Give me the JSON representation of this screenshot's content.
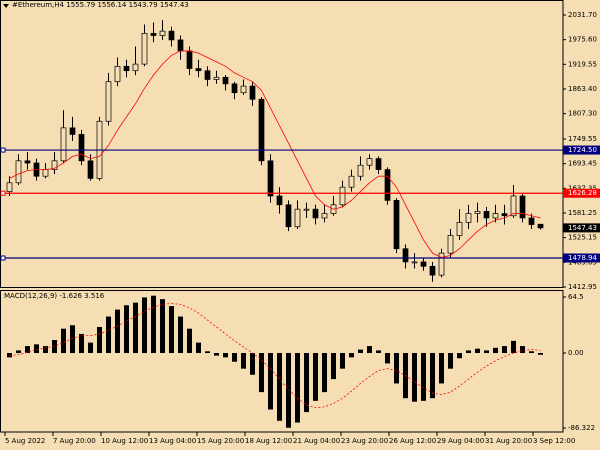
{
  "chart_data": {
    "type": "candlestick",
    "symbol": "#Ethereum,H4",
    "header_ohlc": [
      1555.79,
      1556.14,
      1543.79,
      1547.43
    ],
    "up_color": "#f5deb3",
    "down_color": "#000000",
    "ylim": [
      1412.95,
      2061.3
    ],
    "yticks": [
      {
        "value": 2031.7,
        "label": "2031.70"
      },
      {
        "value": 1975.6,
        "label": "1975.60"
      },
      1919.55,
      {
        "value": 1863.4,
        "label": "1863.40"
      },
      {
        "value": 1807.3,
        "label": "1807.30"
      },
      1749.55,
      1693.45,
      1637.35,
      1581.25,
      1525.15,
      1469.05,
      1412.95
    ],
    "xticks": [
      {
        "value": 0,
        "label": "5 Aug 2022"
      },
      {
        "value": 5.333,
        "label": "7 Aug 20:00"
      },
      {
        "value": 10.667,
        "label": "10 Aug 12:00"
      },
      {
        "value": 16,
        "label": "13 Aug 04:00"
      },
      {
        "value": 21.333,
        "label": "15 Aug 20:00"
      },
      {
        "value": 26.667,
        "label": "18 Aug 12:00"
      },
      {
        "value": 32,
        "label": "21 Aug 04:00"
      },
      {
        "value": 37.333,
        "label": "23 Aug 20:00"
      },
      {
        "value": 42.667,
        "label": "26 Aug 12:00"
      },
      {
        "value": 48,
        "label": "29 Aug 04:00"
      },
      {
        "value": 53.333,
        "label": "31 Aug 20:00"
      },
      {
        "value": 58.667,
        "label": "3 Sep 12:00"
      }
    ],
    "candles": [
      [
        1630,
        1665,
        1620,
        1650
      ],
      [
        1650,
        1715,
        1645,
        1700
      ],
      [
        1700,
        1720,
        1680,
        1695
      ],
      [
        1695,
        1705,
        1655,
        1665
      ],
      [
        1665,
        1695,
        1660,
        1680
      ],
      [
        1680,
        1720,
        1670,
        1700
      ],
      [
        1700,
        1815,
        1695,
        1775
      ],
      [
        1775,
        1800,
        1745,
        1760
      ],
      [
        1760,
        1770,
        1690,
        1700
      ],
      [
        1700,
        1715,
        1655,
        1660
      ],
      [
        1660,
        1800,
        1655,
        1790
      ],
      [
        1790,
        1900,
        1780,
        1880
      ],
      [
        1880,
        1935,
        1870,
        1915
      ],
      [
        1915,
        1930,
        1890,
        1905
      ],
      [
        1905,
        1960,
        1895,
        1920
      ],
      [
        1920,
        2010,
        1915,
        1990
      ],
      [
        1990,
        2015,
        1970,
        1985
      ],
      [
        1985,
        2020,
        1975,
        1995
      ],
      [
        1995,
        2005,
        1960,
        1975
      ],
      [
        1975,
        1985,
        1930,
        1950
      ],
      [
        1950,
        1960,
        1895,
        1910
      ],
      [
        1910,
        1930,
        1890,
        1905
      ],
      [
        1905,
        1915,
        1870,
        1885
      ],
      [
        1885,
        1905,
        1875,
        1890
      ],
      [
        1890,
        1895,
        1860,
        1875
      ],
      [
        1875,
        1880,
        1840,
        1855
      ],
      [
        1855,
        1885,
        1850,
        1870
      ],
      [
        1870,
        1880,
        1825,
        1840
      ],
      [
        1840,
        1845,
        1690,
        1700
      ],
      [
        1700,
        1715,
        1605,
        1620
      ],
      [
        1620,
        1640,
        1580,
        1600
      ],
      [
        1600,
        1610,
        1540,
        1550
      ],
      [
        1550,
        1610,
        1545,
        1590
      ],
      [
        1590,
        1605,
        1570,
        1590
      ],
      [
        1590,
        1600,
        1555,
        1570
      ],
      [
        1570,
        1600,
        1560,
        1580
      ],
      [
        1580,
        1620,
        1575,
        1600
      ],
      [
        1600,
        1655,
        1595,
        1640
      ],
      [
        1640,
        1680,
        1630,
        1665
      ],
      [
        1665,
        1710,
        1655,
        1690
      ],
      [
        1690,
        1715,
        1680,
        1705
      ],
      [
        1705,
        1710,
        1670,
        1680
      ],
      [
        1680,
        1685,
        1600,
        1610
      ],
      [
        1610,
        1615,
        1490,
        1500
      ],
      [
        1500,
        1510,
        1455,
        1470
      ],
      [
        1470,
        1490,
        1455,
        1470
      ],
      [
        1470,
        1480,
        1450,
        1460
      ],
      [
        1460,
        1470,
        1425,
        1440
      ],
      [
        1440,
        1500,
        1435,
        1490
      ],
      [
        1490,
        1545,
        1480,
        1530
      ],
      [
        1530,
        1590,
        1520,
        1560
      ],
      [
        1560,
        1600,
        1545,
        1580
      ],
      [
        1580,
        1605,
        1560,
        1585
      ],
      [
        1585,
        1595,
        1550,
        1570
      ],
      [
        1570,
        1600,
        1560,
        1580
      ],
      [
        1580,
        1600,
        1555,
        1575
      ],
      [
        1575,
        1645,
        1570,
        1620
      ],
      [
        1620,
        1625,
        1560,
        1570
      ],
      [
        1570,
        1580,
        1545,
        1555
      ],
      [
        1555.79,
        1556.14,
        1543.79,
        1547.43
      ]
    ],
    "ma": {
      "color": "#ff0000",
      "values": [
        1660,
        1670,
        1678,
        1680,
        1680,
        1683,
        1695,
        1710,
        1715,
        1705,
        1710,
        1735,
        1770,
        1800,
        1830,
        1865,
        1895,
        1920,
        1940,
        1950,
        1950,
        1945,
        1935,
        1925,
        1915,
        1900,
        1890,
        1880,
        1860,
        1820,
        1780,
        1740,
        1700,
        1660,
        1620,
        1600,
        1590,
        1595,
        1610,
        1630,
        1650,
        1665,
        1665,
        1640,
        1600,
        1560,
        1520,
        1490,
        1480,
        1485,
        1500,
        1520,
        1540,
        1555,
        1565,
        1570,
        1580,
        1580,
        1575,
        1570
      ]
    },
    "levels": [
      {
        "value": 1724.5,
        "label": "1724.50",
        "color": "#000080"
      },
      {
        "value": 1626.28,
        "label": "1626.28",
        "color": "#ff0000"
      },
      {
        "value": 1478.94,
        "label": "1478.94",
        "color": "#000080"
      },
      {
        "value": 1547.43,
        "label": "1547.43",
        "color": "#000000"
      }
    ],
    "macd": {
      "title": "MACD(12,26,9)",
      "title_values": [
        -1.626,
        3.516
      ],
      "ylim": [
        -90.9,
        71.4
      ],
      "yticks": [
        64.5,
        {
          "value": 0,
          "label": "0.00"
        },
        -86.322
      ],
      "histogram": {
        "color": "#000000",
        "values": [
          -5,
          3,
          8,
          10,
          8,
          15,
          28,
          32,
          22,
          12,
          30,
          42,
          50,
          55,
          58,
          64,
          66,
          62,
          54,
          42,
          28,
          12,
          2,
          -3,
          -5,
          -10,
          -18,
          -25,
          -45,
          -65,
          -78,
          -86,
          -80,
          -68,
          -55,
          -45,
          -30,
          -18,
          -5,
          4,
          8,
          3,
          -12,
          -35,
          -52,
          -56,
          -55,
          -52,
          -35,
          -18,
          -6,
          3,
          5,
          3,
          6,
          8,
          14,
          8,
          2,
          -2
        ]
      },
      "signal": {
        "color": "#ff0000",
        "values": [
          -3,
          -2,
          1,
          4,
          6,
          8,
          12,
          17,
          20,
          20,
          22,
          26,
          31,
          37,
          42,
          48,
          53,
          56,
          57,
          56,
          52,
          46,
          38,
          30,
          22,
          14,
          7,
          0,
          -8,
          -18,
          -30,
          -42,
          -52,
          -60,
          -63,
          -62,
          -58,
          -52,
          -44,
          -35,
          -27,
          -20,
          -18,
          -20,
          -26,
          -33,
          -40,
          -46,
          -48,
          -45,
          -38,
          -30,
          -22,
          -15,
          -9,
          -4,
          0,
          3,
          4,
          3
        ]
      }
    }
  }
}
